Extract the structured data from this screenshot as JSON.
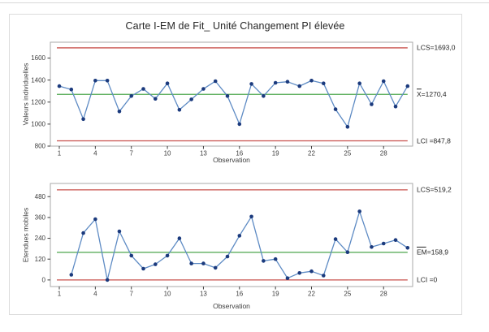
{
  "header": {
    "title": "Carte I-EM de Fit_ Unité Changement PI élevée"
  },
  "colors": {
    "limit_line": "#c9504c",
    "center_line": "#4ca64c",
    "series_line": "#5e8bc4",
    "marker": "#1b3a7d",
    "plot_border": "#a9a9a9",
    "tick_text": "#3d3d3d",
    "label_text": "#262626"
  },
  "chart_data": [
    {
      "type": "line",
      "name": "individuals-chart",
      "ylabel": "Valeurs individuelles",
      "xlabel": "Observation",
      "x": [
        1,
        2,
        3,
        4,
        5,
        6,
        7,
        8,
        9,
        10,
        11,
        12,
        13,
        14,
        15,
        16,
        17,
        18,
        19,
        20,
        21,
        22,
        23,
        24,
        25,
        26,
        27,
        28,
        29,
        30
      ],
      "values": [
        1345,
        1315,
        1045,
        1395,
        1395,
        1115,
        1255,
        1320,
        1230,
        1370,
        1130,
        1225,
        1320,
        1390,
        1255,
        1000,
        1365,
        1255,
        1375,
        1385,
        1345,
        1395,
        1370,
        1135,
        975,
        1370,
        1180,
        1390,
        1160,
        1345
      ],
      "center": 1270.4,
      "ucl": 1693.0,
      "lcl": 847.8,
      "labels": {
        "ucl": {
          "text": "LCS=1693,0",
          "overbar_chars": 0
        },
        "center": {
          "text": "X=1270,4",
          "overbar_chars": 1
        },
        "lcl": {
          "text": "LCI =847,8",
          "overbar_chars": 0
        }
      },
      "yticks": [
        1600,
        1400,
        1200,
        1000,
        800
      ],
      "xticks": [
        1,
        4,
        7,
        10,
        13,
        16,
        19,
        22,
        25,
        28
      ],
      "ylim": [
        800,
        1744
      ],
      "grid": false,
      "legend": "none"
    },
    {
      "type": "line",
      "name": "moving-range-chart",
      "ylabel": "Etendues mobiles",
      "xlabel": "Observation",
      "x": [
        2,
        3,
        4,
        5,
        6,
        7,
        8,
        9,
        10,
        11,
        12,
        13,
        14,
        15,
        16,
        17,
        18,
        19,
        20,
        21,
        22,
        23,
        24,
        25,
        26,
        27,
        28,
        29,
        30
      ],
      "values": [
        30,
        270,
        350,
        0,
        280,
        140,
        65,
        90,
        140,
        240,
        95,
        95,
        70,
        135,
        255,
        365,
        110,
        120,
        10,
        40,
        50,
        25,
        235,
        160,
        395,
        190,
        210,
        230,
        185
      ],
      "center": 158.9,
      "ucl": 519.2,
      "lcl": 0,
      "labels": {
        "ucl": {
          "text": "LCS=519,2",
          "overbar_chars": 0
        },
        "center": {
          "text": "EM=158,9",
          "overbar_chars": 2
        },
        "lcl": {
          "text": "LCI =0",
          "overbar_chars": 0
        }
      },
      "yticks": [
        480,
        360,
        240,
        120,
        0
      ],
      "xticks": [
        1,
        4,
        7,
        10,
        13,
        16,
        19,
        22,
        25,
        28
      ],
      "ylim": [
        -38,
        556
      ],
      "grid": false,
      "legend": "none"
    }
  ]
}
